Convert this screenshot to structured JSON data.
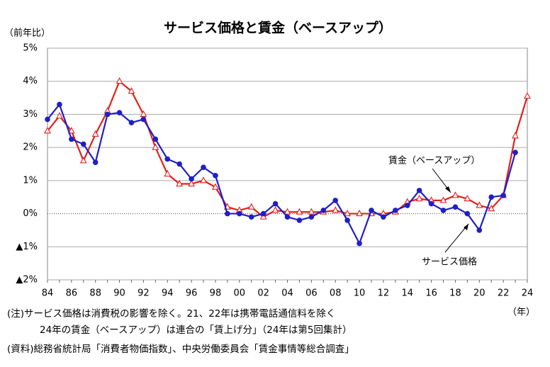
{
  "chart_data": {
    "type": "line",
    "title": "サービス価格と賃金（ベースアップ）",
    "y_label": "（前年比）",
    "x_label": "（年）",
    "categories": [
      "84",
      null,
      "86",
      null,
      "88",
      null,
      "90",
      null,
      "92",
      null,
      "94",
      null,
      "96",
      null,
      "98",
      null,
      "00",
      null,
      "02",
      null,
      "04",
      null,
      "06",
      null,
      "08",
      null,
      "10",
      null,
      "12",
      null,
      "14",
      null,
      "16",
      null,
      "18",
      null,
      "20",
      null,
      "22",
      null,
      "24"
    ],
    "series": [
      {
        "name": "賃金（ベースアップ）",
        "color": "#e0201b",
        "marker": "triangle",
        "values": [
          2.5,
          2.95,
          2.5,
          1.6,
          2.4,
          3.1,
          4.0,
          3.7,
          3.0,
          2.0,
          1.2,
          0.9,
          0.9,
          1.0,
          0.8,
          0.2,
          0.1,
          0.2,
          -0.1,
          0.1,
          0.05,
          0.05,
          0.05,
          0.05,
          0.1,
          0.0,
          0.0,
          0.0,
          0.0,
          0.05,
          0.35,
          0.45,
          0.4,
          0.4,
          0.55,
          0.45,
          0.25,
          0.15,
          0.55,
          2.35,
          3.55
        ]
      },
      {
        "name": "サービス価格",
        "color": "#1f1fc8",
        "marker": "circle",
        "values": [
          2.85,
          3.3,
          2.25,
          2.1,
          1.55,
          3.0,
          3.05,
          2.75,
          2.85,
          2.25,
          1.65,
          1.5,
          1.05,
          1.4,
          1.15,
          0.0,
          0.0,
          -0.1,
          0.0,
          0.3,
          -0.1,
          -0.2,
          -0.1,
          0.1,
          0.4,
          -0.2,
          -0.9,
          0.1,
          -0.1,
          0.1,
          0.25,
          0.7,
          0.3,
          0.1,
          0.2,
          0.0,
          -0.5,
          0.5,
          0.55,
          1.85,
          null
        ]
      }
    ],
    "ylim": [
      -2,
      5
    ],
    "yticks": [
      {
        "value": 5,
        "label": "5%"
      },
      {
        "value": 4,
        "label": "4%"
      },
      {
        "value": 3,
        "label": "3%"
      },
      {
        "value": 2,
        "label": "2%"
      },
      {
        "value": 1,
        "label": "1%"
      },
      {
        "value": 0,
        "label": "0%"
      },
      {
        "value": -1,
        "label": "▲1%"
      },
      {
        "value": -2,
        "label": "▲2%"
      }
    ],
    "grid": true,
    "notes": [
      "(注)サービス価格は消費税の影響を除く。21、22年は携帯電話通信料を除く",
      "24年の賃金（ベースアップ）は連合の「賃上げ分」（24年は第5回集計）",
      "(資料)総務省統計局「消費者物価指数」、中央労働委員会「賃金事情等総合調査」"
    ]
  }
}
